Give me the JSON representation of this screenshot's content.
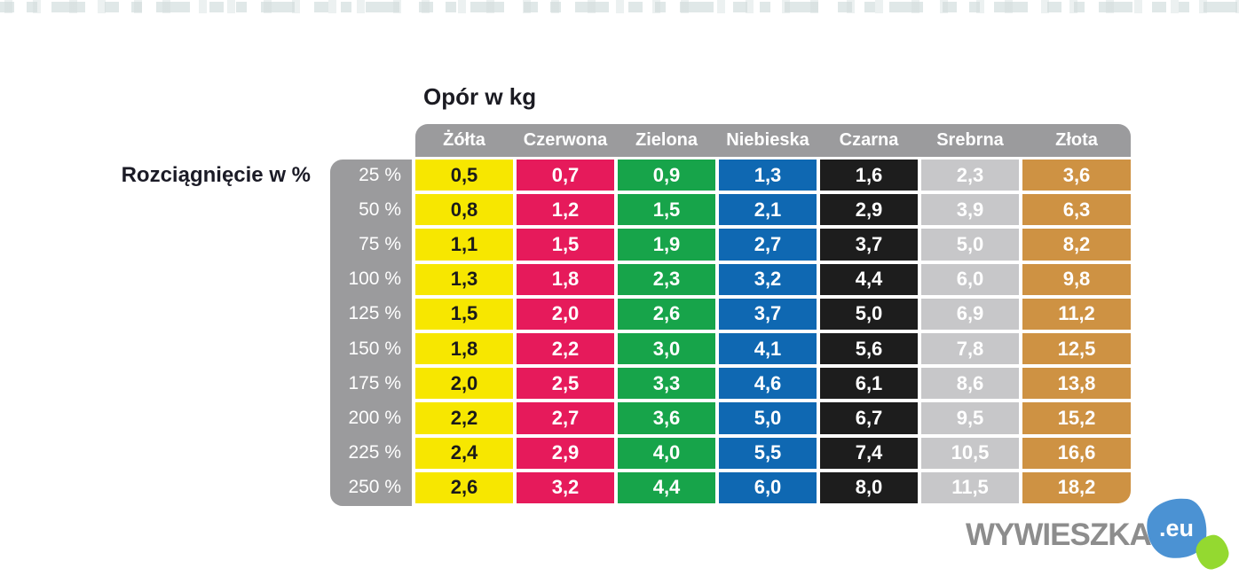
{
  "page": {
    "title": "Opór w kg",
    "row_axis_label": "Rozciągnięcie w %"
  },
  "table": {
    "header_bg": "#9b9b9d",
    "row_label_bg": "#9b9b9d",
    "columns": [
      {
        "key": "zolta",
        "label": "Żółta",
        "bg": "#f7e700",
        "text_color": "#1a1a1a"
      },
      {
        "key": "czerwona",
        "label": "Czerwona",
        "bg": "#e61a5b",
        "text_color": "#ffffff"
      },
      {
        "key": "zielona",
        "label": "Zielona",
        "bg": "#17a44a",
        "text_color": "#ffffff"
      },
      {
        "key": "niebieska",
        "label": "Niebieska",
        "bg": "#0f68b2",
        "text_color": "#ffffff"
      },
      {
        "key": "czarna",
        "label": "Czarna",
        "bg": "#1d1d1d",
        "text_color": "#ffffff"
      },
      {
        "key": "srebrna",
        "label": "Srebrna",
        "bg": "#c7c7c9",
        "text_color": "#ffffff"
      },
      {
        "key": "zlota",
        "label": "Złota",
        "bg": "#ce9243",
        "text_color": "#ffffff"
      }
    ],
    "rows": [
      {
        "label": "25 %",
        "values": [
          "0,5",
          "0,7",
          "0,9",
          "1,3",
          "1,6",
          "2,3",
          "3,6"
        ]
      },
      {
        "label": "50 %",
        "values": [
          "0,8",
          "1,2",
          "1,5",
          "2,1",
          "2,9",
          "3,9",
          "6,3"
        ]
      },
      {
        "label": "75 %",
        "values": [
          "1,1",
          "1,5",
          "1,9",
          "2,7",
          "3,7",
          "5,0",
          "8,2"
        ]
      },
      {
        "label": "100 %",
        "values": [
          "1,3",
          "1,8",
          "2,3",
          "3,2",
          "4,4",
          "6,0",
          "9,8"
        ]
      },
      {
        "label": "125 %",
        "values": [
          "1,5",
          "2,0",
          "2,6",
          "3,7",
          "5,0",
          "6,9",
          "11,2"
        ]
      },
      {
        "label": "150 %",
        "values": [
          "1,8",
          "2,2",
          "3,0",
          "4,1",
          "5,6",
          "7,8",
          "12,5"
        ]
      },
      {
        "label": "175 %",
        "values": [
          "2,0",
          "2,5",
          "3,3",
          "4,6",
          "6,1",
          "8,6",
          "13,8"
        ]
      },
      {
        "label": "200 %",
        "values": [
          "2,2",
          "2,7",
          "3,6",
          "5,0",
          "6,7",
          "9,5",
          "15,2"
        ]
      },
      {
        "label": "225 %",
        "values": [
          "2,4",
          "2,9",
          "4,0",
          "5,5",
          "7,4",
          "10,5",
          "16,6"
        ]
      },
      {
        "label": "250 %",
        "values": [
          "2,6",
          "3,2",
          "4,4",
          "6,0",
          "8,0",
          "11,5",
          "18,2"
        ]
      }
    ]
  },
  "logo": {
    "name": "WYWIESZKA",
    "tld": ".eu",
    "text_color": "#8d8d8d",
    "blob_blue": "#4b92d3",
    "blob_green": "#94d930"
  },
  "chart_data": {
    "type": "table",
    "title": "Opór w kg",
    "xlabel": "Rozciągnięcie w %",
    "categories": [
      "25 %",
      "50 %",
      "75 %",
      "100 %",
      "125 %",
      "150 %",
      "175 %",
      "200 %",
      "225 %",
      "250 %"
    ],
    "values_unit": "kg",
    "series": [
      {
        "name": "Żółta",
        "color": "#f7e700",
        "values": [
          0.5,
          0.8,
          1.1,
          1.3,
          1.5,
          1.8,
          2.0,
          2.2,
          2.4,
          2.6
        ]
      },
      {
        "name": "Czerwona",
        "color": "#e61a5b",
        "values": [
          0.7,
          1.2,
          1.5,
          1.8,
          2.0,
          2.2,
          2.5,
          2.7,
          2.9,
          3.2
        ]
      },
      {
        "name": "Zielona",
        "color": "#17a44a",
        "values": [
          0.9,
          1.5,
          1.9,
          2.3,
          2.6,
          3.0,
          3.3,
          3.6,
          4.0,
          4.4
        ]
      },
      {
        "name": "Niebieska",
        "color": "#0f68b2",
        "values": [
          1.3,
          2.1,
          2.7,
          3.2,
          3.7,
          4.1,
          4.6,
          5.0,
          5.5,
          6.0
        ]
      },
      {
        "name": "Czarna",
        "color": "#1d1d1d",
        "values": [
          1.6,
          2.9,
          3.7,
          4.4,
          5.0,
          5.6,
          6.1,
          6.7,
          7.4,
          8.0
        ]
      },
      {
        "name": "Srebrna",
        "color": "#c7c7c9",
        "values": [
          2.3,
          3.9,
          5.0,
          6.0,
          6.9,
          7.8,
          8.6,
          9.5,
          10.5,
          11.5
        ]
      },
      {
        "name": "Złota",
        "color": "#ce9243",
        "values": [
          3.6,
          6.3,
          8.2,
          9.8,
          11.2,
          12.5,
          13.8,
          15.2,
          16.6,
          18.2
        ]
      }
    ]
  }
}
